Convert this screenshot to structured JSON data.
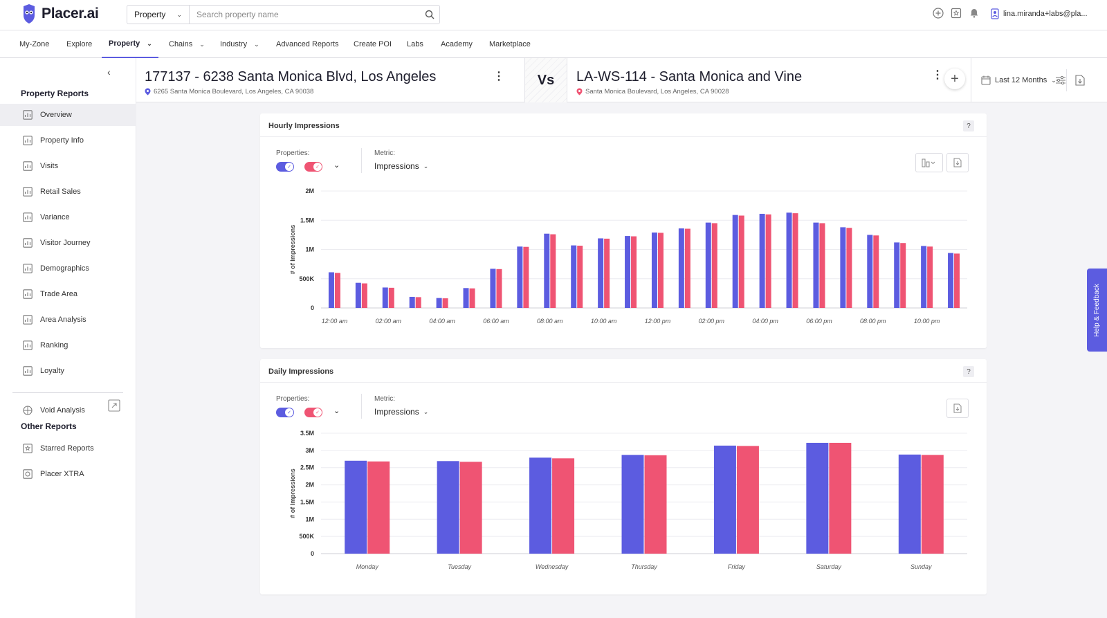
{
  "app": {
    "brand": "Placer.ai"
  },
  "search": {
    "type": "Property",
    "placeholder": "Search property name"
  },
  "user": {
    "email": "lina.miranda+labs@pla..."
  },
  "nav": [
    {
      "label": "My-Zone"
    },
    {
      "label": "Explore"
    },
    {
      "label": "Property"
    },
    {
      "label": "Chains"
    },
    {
      "label": "Industry"
    },
    {
      "label": "Advanced Reports"
    },
    {
      "label": "Create POI"
    },
    {
      "label": "Labs"
    },
    {
      "label": "Academy"
    },
    {
      "label": "Marketplace"
    }
  ],
  "sidebar": {
    "property_reports_title": "Property Reports",
    "items": [
      {
        "label": "Overview",
        "icon": "overview-icon"
      },
      {
        "label": "Property Info",
        "icon": "property-info-icon"
      },
      {
        "label": "Visits",
        "icon": "visits-icon"
      },
      {
        "label": "Retail Sales",
        "icon": "retail-sales-icon"
      },
      {
        "label": "Variance",
        "icon": "variance-icon"
      },
      {
        "label": "Visitor Journey",
        "icon": "visitor-journey-icon"
      },
      {
        "label": "Demographics",
        "icon": "demographics-icon"
      },
      {
        "label": "Trade Area",
        "icon": "trade-area-icon"
      },
      {
        "label": "Area Analysis",
        "icon": "area-analysis-icon"
      },
      {
        "label": "Ranking",
        "icon": "ranking-icon"
      },
      {
        "label": "Loyalty",
        "icon": "loyalty-icon"
      }
    ],
    "void_analysis": "Void Analysis",
    "other_reports_title": "Other Reports",
    "other_items": [
      {
        "label": "Starred Reports",
        "icon": "star-icon"
      },
      {
        "label": "Placer XTRA",
        "icon": "xtra-icon"
      }
    ]
  },
  "header": {
    "left_title": "177137 - 6238 Santa Monica Blvd, Los Angeles",
    "left_address": "6265 Santa Monica Boulevard, Los Angeles, CA 90038",
    "vs": "Vs",
    "right_title": "LA-WS-114 - Santa Monica and Vine",
    "right_address": "Santa Monica Boulevard, Los Angeles, CA 90028",
    "date_range": "Last 12 Months"
  },
  "colors": {
    "series1": "#5c5ce0",
    "series2": "#ef5473",
    "accent": "#5c5ce0"
  },
  "hourly": {
    "title": "Hourly Impressions",
    "help": "?",
    "properties_label": "Properties:",
    "metric_label": "Metric:",
    "metric_value": "Impressions"
  },
  "daily": {
    "title": "Daily Impressions",
    "help": "?",
    "properties_label": "Properties:",
    "metric_label": "Metric:",
    "metric_value": "Impressions"
  },
  "feedback": {
    "label": "Help & Feedback"
  },
  "chart_data": [
    {
      "type": "bar",
      "title": "Hourly Impressions",
      "ylabel": "# of Impressions",
      "ylim": [
        0,
        2000000
      ],
      "yticks": [
        "0",
        "500K",
        "1M",
        "1.5M",
        "2M"
      ],
      "xtick_labels": [
        "12:00 am",
        "02:00 am",
        "04:00 am",
        "06:00 am",
        "08:00 am",
        "10:00 am",
        "12:00 pm",
        "02:00 pm",
        "04:00 pm",
        "06:00 pm",
        "08:00 pm",
        "10:00 pm"
      ],
      "categories": [
        "12:00 am",
        "01:00 am",
        "02:00 am",
        "03:00 am",
        "04:00 am",
        "05:00 am",
        "06:00 am",
        "07:00 am",
        "08:00 am",
        "09:00 am",
        "10:00 am",
        "11:00 am",
        "12:00 pm",
        "01:00 pm",
        "02:00 pm",
        "03:00 pm",
        "04:00 pm",
        "05:00 pm",
        "06:00 pm",
        "07:00 pm",
        "08:00 pm",
        "09:00 pm",
        "10:00 pm",
        "11:00 pm"
      ],
      "series": [
        {
          "values": [
            610000,
            430000,
            350000,
            190000,
            170000,
            340000,
            670000,
            1050000,
            1270000,
            1070000,
            1190000,
            1230000,
            1290000,
            1360000,
            1460000,
            1590000,
            1610000,
            1630000,
            1460000,
            1380000,
            1250000,
            1120000,
            1060000,
            940000
          ]
        },
        {
          "values": [
            600000,
            420000,
            345000,
            185000,
            165000,
            335000,
            665000,
            1045000,
            1260000,
            1065000,
            1185000,
            1225000,
            1285000,
            1355000,
            1450000,
            1580000,
            1600000,
            1620000,
            1450000,
            1370000,
            1240000,
            1110000,
            1050000,
            930000
          ]
        }
      ]
    },
    {
      "type": "bar",
      "title": "Daily Impressions",
      "ylabel": "# of Impressions",
      "ylim": [
        0,
        3500000
      ],
      "yticks": [
        "0",
        "500K",
        "1M",
        "1.5M",
        "2M",
        "2.5M",
        "3M",
        "3.5M"
      ],
      "categories": [
        "Monday",
        "Tuesday",
        "Wednesday",
        "Thursday",
        "Friday",
        "Saturday",
        "Sunday"
      ],
      "series": [
        {
          "values": [
            2700000,
            2690000,
            2790000,
            2870000,
            3140000,
            3220000,
            2880000
          ]
        },
        {
          "values": [
            2680000,
            2670000,
            2770000,
            2860000,
            3130000,
            3220000,
            2870000
          ]
        }
      ]
    }
  ]
}
